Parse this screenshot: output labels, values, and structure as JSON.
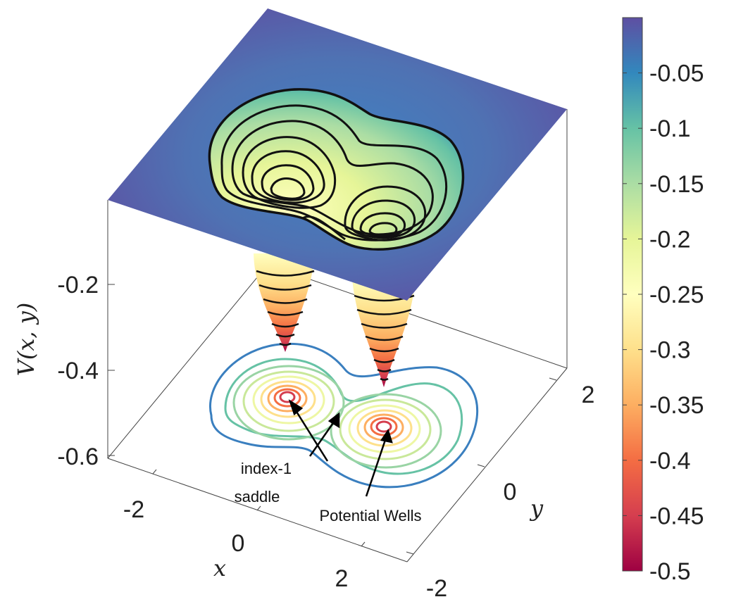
{
  "chart_data": {
    "type": "surface3d-contour",
    "zlabel": "V(x, y)",
    "xlabel": "x",
    "ylabel": "y",
    "x_ticks": [
      "-2",
      "0",
      "2"
    ],
    "y_ticks": [
      "-2",
      "0",
      "2"
    ],
    "z_ticks": [
      "-0.2",
      "-0.4",
      "-0.6"
    ],
    "zlim": [
      -0.65,
      0.0
    ],
    "colorbar": {
      "colormap": "spectral",
      "range": [
        -0.5,
        0.0
      ],
      "ticks": [
        "-0.05",
        "-0.1",
        "-0.15",
        "-0.2",
        "-0.25",
        "-0.3",
        "-0.35",
        "-0.4",
        "-0.45",
        "-0.5"
      ],
      "tick_values": [
        -0.05,
        -0.1,
        -0.15,
        -0.2,
        -0.25,
        -0.3,
        -0.35,
        -0.4,
        -0.45,
        -0.5
      ],
      "colors": [
        "#9e0142",
        "#d53e4f",
        "#f46d43",
        "#fdae61",
        "#fee08b",
        "#ffffbf",
        "#e6f598",
        "#abdda4",
        "#66c2a5",
        "#3288bd",
        "#5e4fa2"
      ]
    },
    "wells": [
      {
        "x": -1.2,
        "y": 0.6,
        "min_value": -0.5
      },
      {
        "x": 1.2,
        "y": -0.6,
        "min_value": -0.5
      }
    ],
    "contour_levels": [
      -0.45,
      -0.4,
      -0.35,
      -0.3,
      -0.25,
      -0.2,
      -0.15,
      -0.1,
      -0.05
    ],
    "annotations": {
      "saddle": [
        "index-1",
        "saddle"
      ],
      "wells": "Potential Wells"
    }
  }
}
